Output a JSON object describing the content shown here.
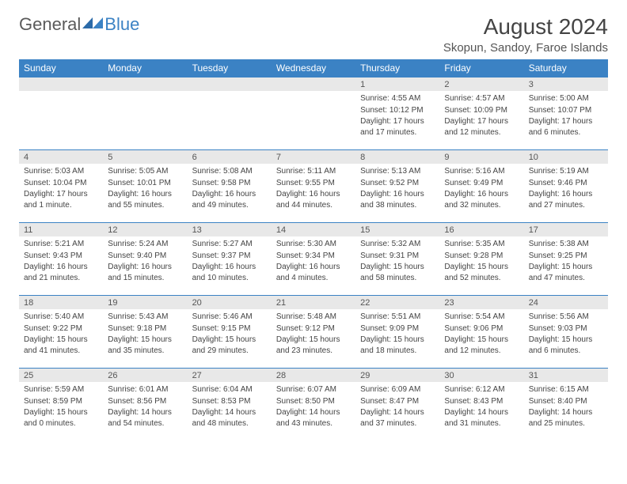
{
  "logo": {
    "text1": "General",
    "text2": "Blue"
  },
  "title": "August 2024",
  "location": "Skopun, Sandoy, Faroe Islands",
  "colors": {
    "header_bg": "#3b82c4",
    "header_fg": "#ffffff",
    "daynum_bg": "#e8e8e8",
    "border": "#3b82c4",
    "text": "#444444"
  },
  "day_headers": [
    "Sunday",
    "Monday",
    "Tuesday",
    "Wednesday",
    "Thursday",
    "Friday",
    "Saturday"
  ],
  "weeks": [
    [
      null,
      null,
      null,
      null,
      {
        "n": "1",
        "sr": "4:55 AM",
        "ss": "10:12 PM",
        "dl": "17 hours and 17 minutes."
      },
      {
        "n": "2",
        "sr": "4:57 AM",
        "ss": "10:09 PM",
        "dl": "17 hours and 12 minutes."
      },
      {
        "n": "3",
        "sr": "5:00 AM",
        "ss": "10:07 PM",
        "dl": "17 hours and 6 minutes."
      }
    ],
    [
      {
        "n": "4",
        "sr": "5:03 AM",
        "ss": "10:04 PM",
        "dl": "17 hours and 1 minute."
      },
      {
        "n": "5",
        "sr": "5:05 AM",
        "ss": "10:01 PM",
        "dl": "16 hours and 55 minutes."
      },
      {
        "n": "6",
        "sr": "5:08 AM",
        "ss": "9:58 PM",
        "dl": "16 hours and 49 minutes."
      },
      {
        "n": "7",
        "sr": "5:11 AM",
        "ss": "9:55 PM",
        "dl": "16 hours and 44 minutes."
      },
      {
        "n": "8",
        "sr": "5:13 AM",
        "ss": "9:52 PM",
        "dl": "16 hours and 38 minutes."
      },
      {
        "n": "9",
        "sr": "5:16 AM",
        "ss": "9:49 PM",
        "dl": "16 hours and 32 minutes."
      },
      {
        "n": "10",
        "sr": "5:19 AM",
        "ss": "9:46 PM",
        "dl": "16 hours and 27 minutes."
      }
    ],
    [
      {
        "n": "11",
        "sr": "5:21 AM",
        "ss": "9:43 PM",
        "dl": "16 hours and 21 minutes."
      },
      {
        "n": "12",
        "sr": "5:24 AM",
        "ss": "9:40 PM",
        "dl": "16 hours and 15 minutes."
      },
      {
        "n": "13",
        "sr": "5:27 AM",
        "ss": "9:37 PM",
        "dl": "16 hours and 10 minutes."
      },
      {
        "n": "14",
        "sr": "5:30 AM",
        "ss": "9:34 PM",
        "dl": "16 hours and 4 minutes."
      },
      {
        "n": "15",
        "sr": "5:32 AM",
        "ss": "9:31 PM",
        "dl": "15 hours and 58 minutes."
      },
      {
        "n": "16",
        "sr": "5:35 AM",
        "ss": "9:28 PM",
        "dl": "15 hours and 52 minutes."
      },
      {
        "n": "17",
        "sr": "5:38 AM",
        "ss": "9:25 PM",
        "dl": "15 hours and 47 minutes."
      }
    ],
    [
      {
        "n": "18",
        "sr": "5:40 AM",
        "ss": "9:22 PM",
        "dl": "15 hours and 41 minutes."
      },
      {
        "n": "19",
        "sr": "5:43 AM",
        "ss": "9:18 PM",
        "dl": "15 hours and 35 minutes."
      },
      {
        "n": "20",
        "sr": "5:46 AM",
        "ss": "9:15 PM",
        "dl": "15 hours and 29 minutes."
      },
      {
        "n": "21",
        "sr": "5:48 AM",
        "ss": "9:12 PM",
        "dl": "15 hours and 23 minutes."
      },
      {
        "n": "22",
        "sr": "5:51 AM",
        "ss": "9:09 PM",
        "dl": "15 hours and 18 minutes."
      },
      {
        "n": "23",
        "sr": "5:54 AM",
        "ss": "9:06 PM",
        "dl": "15 hours and 12 minutes."
      },
      {
        "n": "24",
        "sr": "5:56 AM",
        "ss": "9:03 PM",
        "dl": "15 hours and 6 minutes."
      }
    ],
    [
      {
        "n": "25",
        "sr": "5:59 AM",
        "ss": "8:59 PM",
        "dl": "15 hours and 0 minutes."
      },
      {
        "n": "26",
        "sr": "6:01 AM",
        "ss": "8:56 PM",
        "dl": "14 hours and 54 minutes."
      },
      {
        "n": "27",
        "sr": "6:04 AM",
        "ss": "8:53 PM",
        "dl": "14 hours and 48 minutes."
      },
      {
        "n": "28",
        "sr": "6:07 AM",
        "ss": "8:50 PM",
        "dl": "14 hours and 43 minutes."
      },
      {
        "n": "29",
        "sr": "6:09 AM",
        "ss": "8:47 PM",
        "dl": "14 hours and 37 minutes."
      },
      {
        "n": "30",
        "sr": "6:12 AM",
        "ss": "8:43 PM",
        "dl": "14 hours and 31 minutes."
      },
      {
        "n": "31",
        "sr": "6:15 AM",
        "ss": "8:40 PM",
        "dl": "14 hours and 25 minutes."
      }
    ]
  ],
  "labels": {
    "sunrise": "Sunrise: ",
    "sunset": "Sunset: ",
    "daylight": "Daylight: "
  }
}
